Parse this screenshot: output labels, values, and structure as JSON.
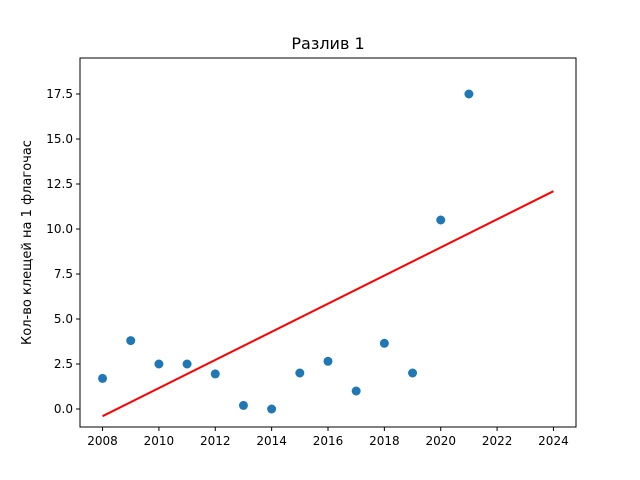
{
  "chart_data": {
    "type": "scatter",
    "title": "Разлив 1",
    "xlabel": "",
    "ylabel": "Кол-во клещей на 1 флагочас",
    "xlim": [
      2007.2,
      2024.8
    ],
    "ylim": [
      -1.0,
      19.5
    ],
    "xticks": [
      2008,
      2010,
      2012,
      2014,
      2016,
      2018,
      2020,
      2022,
      2024
    ],
    "xtick_labels": [
      "2008",
      "2010",
      "2012",
      "2014",
      "2016",
      "2018",
      "2020",
      "2022",
      "2024"
    ],
    "yticks": [
      0.0,
      2.5,
      5.0,
      7.5,
      10.0,
      12.5,
      15.0,
      17.5
    ],
    "ytick_labels": [
      "0.0",
      "2.5",
      "5.0",
      "7.5",
      "10.0",
      "12.5",
      "15.0",
      "17.5"
    ],
    "grid": false,
    "series": [
      {
        "type": "scatter",
        "color": "#1f77b4",
        "points": [
          {
            "x": 2008,
            "y": 1.7
          },
          {
            "x": 2009,
            "y": 3.8
          },
          {
            "x": 2010,
            "y": 2.5
          },
          {
            "x": 2011,
            "y": 2.5
          },
          {
            "x": 2012,
            "y": 1.95
          },
          {
            "x": 2013,
            "y": 0.2
          },
          {
            "x": 2014,
            "y": 0.0
          },
          {
            "x": 2015,
            "y": 2.0
          },
          {
            "x": 2016,
            "y": 2.65
          },
          {
            "x": 2017,
            "y": 1.0
          },
          {
            "x": 2018,
            "y": 3.65
          },
          {
            "x": 2019,
            "y": 2.0
          },
          {
            "x": 2020,
            "y": 10.5
          },
          {
            "x": 2021,
            "y": 17.5
          }
        ]
      },
      {
        "type": "line",
        "color": "#ff0000",
        "points": [
          {
            "x": 2008,
            "y": -0.4
          },
          {
            "x": 2024,
            "y": 12.1
          }
        ]
      }
    ]
  }
}
